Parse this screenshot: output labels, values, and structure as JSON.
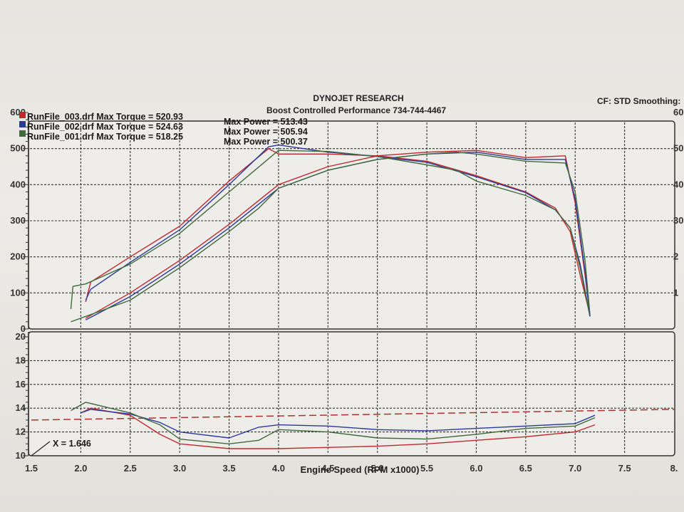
{
  "header": {
    "company": "DYNOJET RESEARCH",
    "shop": "Boost Controlled Performance   734-744-4467",
    "correction": "CF: STD  Smoothing:"
  },
  "legend": [
    {
      "torque": "RunFile_003.drf Max Torque = 520.93",
      "power": "Max Power = 513.43",
      "color": "#c0282d"
    },
    {
      "torque": "RunFile_002.drf Max Torque = 524.63",
      "power": "Max Power = 505.94",
      "color": "#2a3a9a"
    },
    {
      "torque": "RunFile_001.drf Max Torque = 518.25",
      "power": "Max Power = 500.37",
      "color": "#3f6a3c"
    }
  ],
  "cursor": {
    "label": "X = 1.646"
  },
  "right_axis_ticks": [
    "60",
    "50",
    "40",
    "30",
    "2",
    "1"
  ],
  "chart_data": [
    {
      "type": "line",
      "title": "",
      "xlabel": "Engine Speed (RPM x1000)",
      "ylabel": "",
      "xlim": [
        1.5,
        8.0
      ],
      "ylim": [
        0,
        600
      ],
      "xticks": [
        "1.5",
        "2.0",
        "2.5",
        "3.0",
        "3.5",
        "4.0",
        "4.5",
        "5.0",
        "5.5",
        "6.0",
        "6.5",
        "7.0",
        "7.5",
        "8."
      ],
      "yticks": [
        "0",
        "100",
        "200",
        "300",
        "400",
        "500",
        "600"
      ],
      "series": [
        {
          "name": "RunFile_003.drf",
          "metric": "torque",
          "color": "#c0282d",
          "x": [
            2.05,
            2.1,
            2.5,
            3.0,
            3.5,
            3.9,
            4.0,
            4.5,
            5.0,
            5.5,
            6.0,
            6.5,
            6.8,
            6.95,
            7.05,
            7.15
          ],
          "y": [
            75,
            130,
            200,
            285,
            410,
            500,
            485,
            485,
            480,
            465,
            425,
            380,
            335,
            270,
            150,
            40
          ]
        },
        {
          "name": "RunFile_002.drf",
          "metric": "torque",
          "color": "#2a3a9a",
          "x": [
            2.05,
            2.1,
            2.5,
            3.0,
            3.5,
            3.9,
            4.0,
            4.5,
            5.0,
            5.5,
            6.0,
            6.5,
            6.8,
            6.95,
            7.05,
            7.15
          ],
          "y": [
            80,
            110,
            185,
            275,
            400,
            505,
            510,
            490,
            478,
            462,
            422,
            378,
            330,
            280,
            180,
            35
          ]
        },
        {
          "name": "RunFile_001.drf",
          "metric": "torque",
          "color": "#3f6a3c",
          "x": [
            1.9,
            1.92,
            2.05,
            2.5,
            3.0,
            3.5,
            4.0,
            4.5,
            5.0,
            5.5,
            5.8,
            6.0,
            6.5,
            6.8,
            6.95,
            7.05,
            7.15
          ],
          "y": [
            55,
            118,
            125,
            180,
            265,
            380,
            495,
            492,
            478,
            455,
            440,
            410,
            370,
            330,
            280,
            170,
            35
          ]
        },
        {
          "name": "RunFile_003.drf",
          "metric": "power",
          "color": "#c0282d",
          "x": [
            2.05,
            2.5,
            3.0,
            3.5,
            4.0,
            4.5,
            5.0,
            5.5,
            6.0,
            6.5,
            6.9,
            7.0,
            7.1,
            7.15
          ],
          "y": [
            30,
            100,
            190,
            290,
            400,
            450,
            480,
            490,
            495,
            475,
            480,
            350,
            150,
            40
          ]
        },
        {
          "name": "RunFile_002.drf",
          "metric": "power",
          "color": "#2a3a9a",
          "x": [
            2.05,
            2.5,
            3.0,
            3.5,
            4.0,
            4.5,
            5.0,
            5.5,
            6.0,
            6.5,
            6.9,
            7.0,
            7.1,
            7.15
          ],
          "y": [
            25,
            90,
            180,
            280,
            390,
            440,
            470,
            485,
            490,
            470,
            470,
            360,
            160,
            35
          ]
        },
        {
          "name": "RunFile_001.drf",
          "metric": "power",
          "color": "#3f6a3c",
          "x": [
            1.9,
            2.5,
            3.0,
            3.5,
            3.8,
            4.0,
            4.5,
            5.0,
            5.5,
            5.8,
            6.0,
            6.5,
            6.9,
            7.0,
            7.1,
            7.15
          ],
          "y": [
            20,
            80,
            170,
            270,
            335,
            390,
            440,
            470,
            485,
            490,
            485,
            465,
            460,
            380,
            190,
            40
          ]
        }
      ]
    },
    {
      "type": "line",
      "title": "",
      "xlabel": "Engine Speed (RPM x1000)",
      "ylabel": "",
      "xlim": [
        1.5,
        8.0
      ],
      "ylim": [
        10,
        20
      ],
      "yticks": [
        "10",
        "12",
        "14",
        "16",
        "18",
        "20"
      ],
      "target_line": {
        "x": [
          1.5,
          8.0
        ],
        "y": [
          13.0,
          13.9
        ],
        "color": "#b03030"
      },
      "series": [
        {
          "name": "RunFile_003.drf",
          "color": "#c0282d",
          "x": [
            2.0,
            2.1,
            2.5,
            2.8,
            3.0,
            3.5,
            4.0,
            4.5,
            5.0,
            5.5,
            6.0,
            6.5,
            7.0,
            7.2
          ],
          "y": [
            13.6,
            14.0,
            13.4,
            11.8,
            11.0,
            10.6,
            10.6,
            10.7,
            10.8,
            11.0,
            11.3,
            11.6,
            12.0,
            12.6
          ]
        },
        {
          "name": "RunFile_002.drf",
          "color": "#2a3a9a",
          "x": [
            2.0,
            2.1,
            2.5,
            2.8,
            3.0,
            3.5,
            3.8,
            4.0,
            4.5,
            5.0,
            5.5,
            6.0,
            6.5,
            7.0,
            7.2
          ],
          "y": [
            13.6,
            13.9,
            13.5,
            12.8,
            12.0,
            11.5,
            12.4,
            12.6,
            12.5,
            12.2,
            12.1,
            12.3,
            12.5,
            12.7,
            13.4
          ]
        },
        {
          "name": "RunFile_001.drf",
          "color": "#3f6a3c",
          "x": [
            1.9,
            2.05,
            2.5,
            2.8,
            3.0,
            3.5,
            3.8,
            4.0,
            4.5,
            5.0,
            5.5,
            6.0,
            6.5,
            7.0,
            7.2
          ],
          "y": [
            13.8,
            14.5,
            13.6,
            12.6,
            11.4,
            11.0,
            11.3,
            12.2,
            12.0,
            11.5,
            11.4,
            11.8,
            12.3,
            12.5,
            13.2
          ]
        }
      ]
    }
  ]
}
